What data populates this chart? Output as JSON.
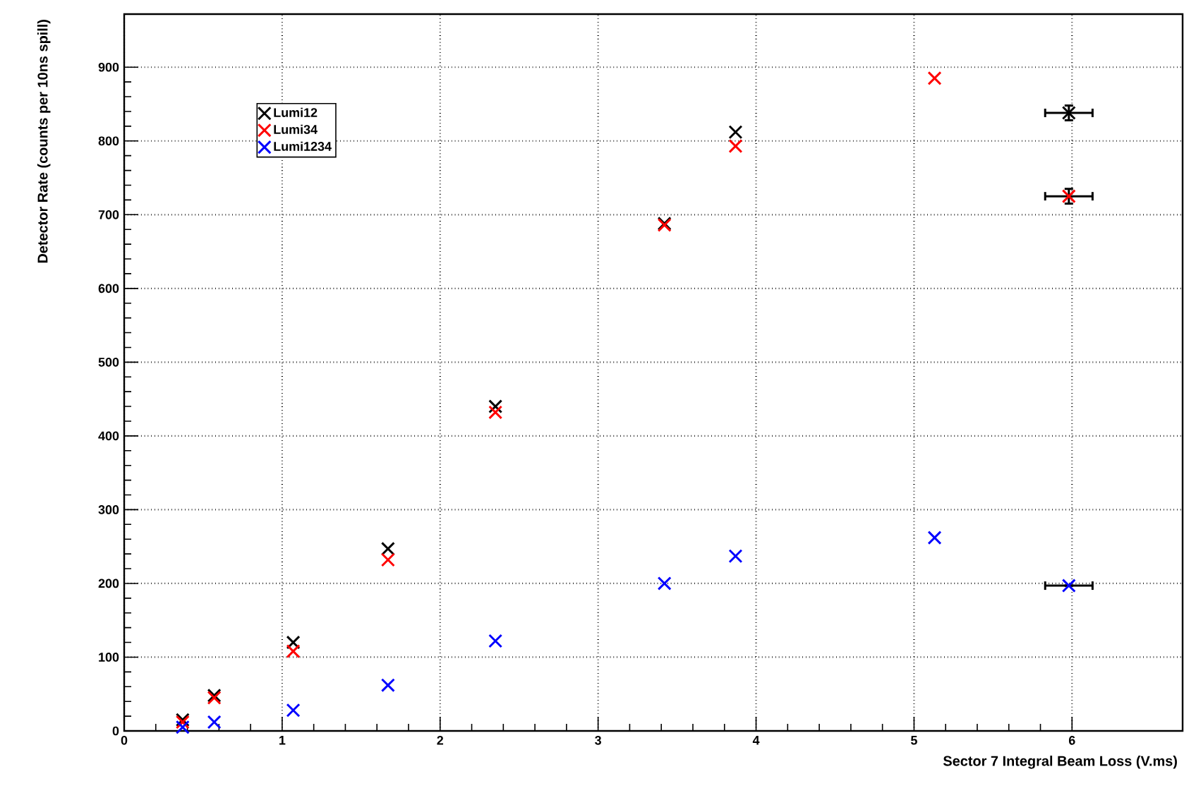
{
  "chart_data": {
    "type": "scatter",
    "xlabel": "Sector 7 Integral Beam Loss (V.ms)",
    "ylabel": "Detector Rate (counts per 10ns spill)",
    "x": [
      0.37,
      0.57,
      1.07,
      1.67,
      2.35,
      3.42,
      3.87,
      5.13,
      5.98
    ],
    "series": [
      {
        "name": "Lumi12",
        "color": "#000000",
        "values": [
          15,
          48,
          120,
          247,
          440,
          688,
          812,
          null,
          838
        ],
        "errors": [
          null,
          null,
          null,
          null,
          null,
          null,
          null,
          null,
          10
        ],
        "xerrors": [
          null,
          null,
          null,
          null,
          null,
          null,
          null,
          null,
          0.15
        ]
      },
      {
        "name": "Lumi34",
        "color": "#ff0000",
        "values": [
          12,
          45,
          108,
          232,
          432,
          686,
          793,
          885,
          725
        ],
        "errors": [
          null,
          null,
          null,
          null,
          null,
          null,
          null,
          null,
          10
        ],
        "xerrors": [
          null,
          null,
          null,
          null,
          null,
          null,
          null,
          null,
          0.15
        ]
      },
      {
        "name": "Lumi1234",
        "color": "#0000ff",
        "values": [
          5,
          12,
          28,
          62,
          122,
          200,
          237,
          262,
          197
        ],
        "xerrors": [
          null,
          null,
          null,
          null,
          null,
          null,
          null,
          null,
          0.15
        ]
      }
    ],
    "xlim": [
      0,
      6.7
    ],
    "ylim": [
      0,
      972
    ],
    "xticks": [
      0,
      1,
      2,
      3,
      4,
      5,
      6
    ],
    "yticks": [
      0,
      100,
      200,
      300,
      400,
      500,
      600,
      700,
      800,
      900
    ],
    "grid": true,
    "legend": "top left",
    "marker": "cross"
  }
}
